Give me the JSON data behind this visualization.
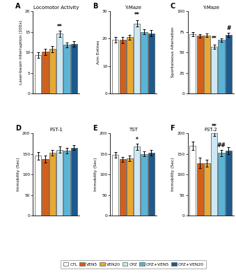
{
  "panels": {
    "A": {
      "title": "Locomotor Activity",
      "ylabel": "Laser-beam Interruption (100x)",
      "ylim": [
        0,
        20
      ],
      "yticks": [
        0,
        5,
        10,
        15,
        20
      ],
      "values": [
        9.3,
        10.1,
        10.8,
        14.5,
        11.8,
        12.0
      ],
      "errors": [
        0.7,
        0.7,
        0.8,
        0.8,
        0.6,
        0.7
      ],
      "annotations": [
        {
          "bar": 3,
          "text": "**",
          "y": 15.5
        }
      ]
    },
    "B": {
      "title": "Y-Maze",
      "ylabel": "Arm Entries",
      "ylim": [
        0,
        30
      ],
      "yticks": [
        0,
        10,
        20,
        30
      ],
      "values": [
        19.5,
        19.5,
        20.5,
        25.5,
        22.5,
        22.0
      ],
      "errors": [
        1.0,
        1.2,
        0.8,
        1.2,
        1.0,
        1.2
      ],
      "annotations": [
        {
          "bar": 3,
          "text": "**",
          "y": 27.5
        }
      ]
    },
    "C": {
      "title": "Y-Maze",
      "ylabel": "Spontaneous Alternation",
      "ylim": [
        0,
        100
      ],
      "yticks": [
        0,
        25,
        50,
        75,
        100
      ],
      "values": [
        72.0,
        70.0,
        70.5,
        57.0,
        65.0,
        71.0
      ],
      "errors": [
        2.5,
        2.0,
        2.0,
        2.5,
        2.0,
        2.5
      ],
      "annotations": [
        {
          "bar": 3,
          "text": "**",
          "y": 62.5
        },
        {
          "bar": 5,
          "text": "#",
          "y": 75.5
        }
      ]
    },
    "D": {
      "title": "FST-1",
      "ylabel": "Immobility (Sec)",
      "ylim": [
        0,
        200
      ],
      "yticks": [
        0,
        50,
        100,
        150,
        200
      ],
      "values": [
        145.0,
        137.0,
        152.0,
        160.0,
        158.0,
        165.0
      ],
      "errors": [
        9.0,
        8.0,
        7.0,
        8.0,
        7.0,
        6.0
      ],
      "annotations": []
    },
    "E": {
      "title": "TST",
      "ylabel": "Immobility (Sec)",
      "ylim": [
        0,
        200
      ],
      "yticks": [
        0,
        50,
        100,
        150,
        200
      ],
      "values": [
        147.0,
        137.0,
        139.0,
        167.0,
        150.0,
        152.0
      ],
      "errors": [
        7.0,
        6.0,
        7.0,
        8.0,
        6.0,
        7.0
      ],
      "annotations": [
        {
          "bar": 3,
          "text": "*",
          "y": 177.0
        }
      ]
    },
    "F": {
      "title": "FST-2",
      "ylabel": "Immobility (Sec)",
      "ylim": [
        0,
        200
      ],
      "yticks": [
        0,
        50,
        100,
        150,
        200
      ],
      "values": [
        170.0,
        128.0,
        127.0,
        200.0,
        152.0,
        158.0
      ],
      "errors": [
        10.0,
        12.0,
        9.0,
        7.0,
        8.0,
        8.0
      ],
      "annotations": [
        {
          "bar": 3,
          "text": "**",
          "y": 208.0
        },
        {
          "bar": 4,
          "text": "##",
          "y": 163.0
        }
      ]
    }
  },
  "bar_colors": [
    "#ffffff",
    "#d2601a",
    "#e8a832",
    "#cce8f4",
    "#5ab4d6",
    "#1e5a8c"
  ],
  "bar_edgecolors": [
    "#555555",
    "#555555",
    "#555555",
    "#555555",
    "#555555",
    "#555555"
  ],
  "legend_labels": [
    "CTL",
    "VEN5",
    "VEN20",
    "CPZ",
    "CPZ+VEN5",
    "CPZ+VEN20"
  ],
  "panel_labels": [
    "A",
    "B",
    "C",
    "D",
    "E",
    "F"
  ],
  "figsize": [
    3.39,
    4.0
  ],
  "dpi": 100
}
